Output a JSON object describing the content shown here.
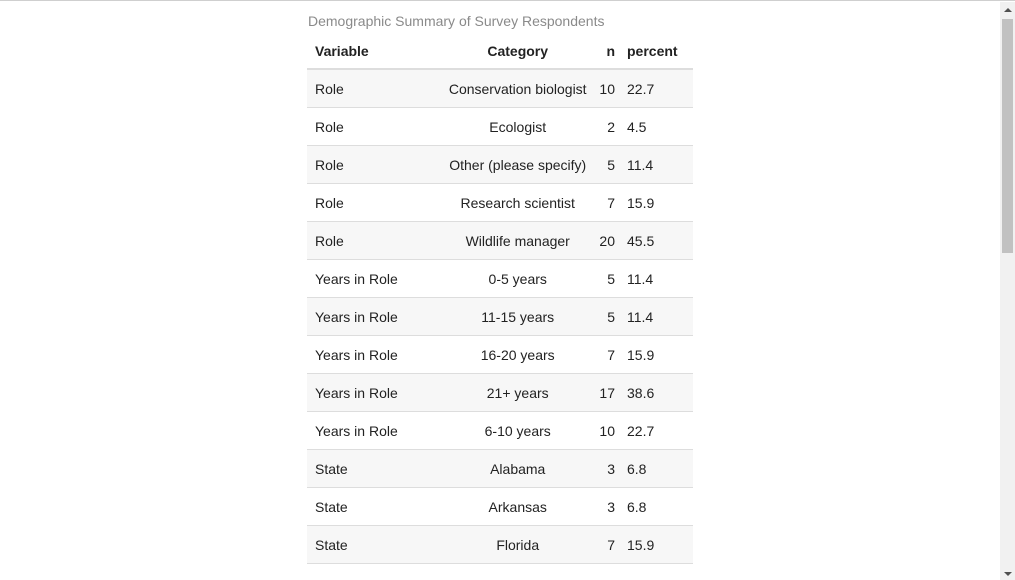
{
  "table": {
    "caption": "Demographic Summary of Survey Respondents",
    "headers": {
      "variable": "Variable",
      "category": "Category",
      "n": "n",
      "percent": "percent"
    },
    "rows": [
      {
        "variable": "Role",
        "category": "Conservation biologist",
        "n": "10",
        "percent": "22.7"
      },
      {
        "variable": "Role",
        "category": "Ecologist",
        "n": "2",
        "percent": "4.5"
      },
      {
        "variable": "Role",
        "category": "Other (please specify)",
        "n": "5",
        "percent": "11.4"
      },
      {
        "variable": "Role",
        "category": "Research scientist",
        "n": "7",
        "percent": "15.9"
      },
      {
        "variable": "Role",
        "category": "Wildlife manager",
        "n": "20",
        "percent": "45.5"
      },
      {
        "variable": "Years in Role",
        "category": "0-5 years",
        "n": "5",
        "percent": "11.4"
      },
      {
        "variable": "Years in Role",
        "category": "11-15 years",
        "n": "5",
        "percent": "11.4"
      },
      {
        "variable": "Years in Role",
        "category": "16-20 years",
        "n": "7",
        "percent": "15.9"
      },
      {
        "variable": "Years in Role",
        "category": "21+ years",
        "n": "17",
        "percent": "38.6"
      },
      {
        "variable": "Years in Role",
        "category": "6-10 years",
        "n": "10",
        "percent": "22.7"
      },
      {
        "variable": "State",
        "category": "Alabama",
        "n": "3",
        "percent": "6.8"
      },
      {
        "variable": "State",
        "category": "Arkansas",
        "n": "3",
        "percent": "6.8"
      },
      {
        "variable": "State",
        "category": "Florida",
        "n": "7",
        "percent": "15.9"
      }
    ]
  },
  "scrollbar": {
    "position_fraction": 0.0,
    "up_icon": "arrow-up-icon",
    "down_icon": "arrow-down-icon"
  },
  "colors": {
    "caption": "#8a8a8a",
    "stripe": "#f7f7f7",
    "rule": "#dddddd",
    "thumb": "#c1c1c1"
  }
}
